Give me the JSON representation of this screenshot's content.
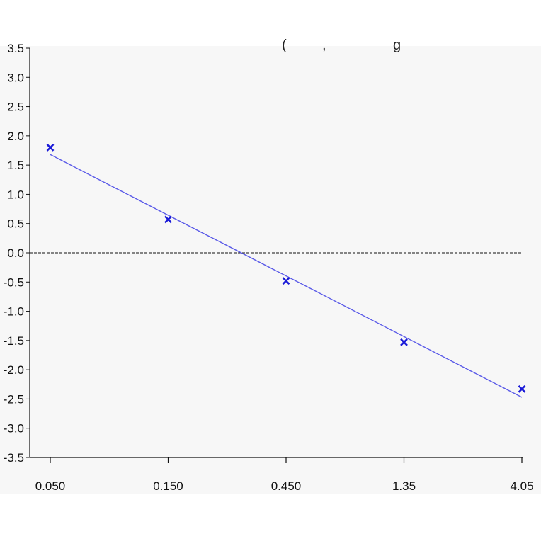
{
  "chart_data": {
    "type": "scatter",
    "title": "",
    "xlabel": "",
    "ylabel": "",
    "x_scale": "log",
    "x_tick_labels": [
      "0.050",
      "0.150",
      "0.450",
      "1.35",
      "4.05"
    ],
    "x_values": [
      0.05,
      0.15,
      0.45,
      1.35,
      4.05
    ],
    "ylim": [
      -3.5,
      3.5
    ],
    "y_ticks": [
      3.5,
      3.0,
      2.5,
      2.0,
      1.5,
      1.0,
      0.5,
      0.0,
      -0.5,
      -1.0,
      -1.5,
      -2.0,
      -2.5,
      -3.0,
      -3.5
    ],
    "y_tick_labels": [
      "3.5",
      "3.0",
      "2.5",
      "2.0",
      "1.5",
      "1.0",
      "0.5",
      "0.0",
      "-0.5",
      "-1.0",
      "-1.5",
      "-2.0",
      "-2.5",
      "-3.0",
      "-3.5"
    ],
    "series": [
      {
        "marker": "x",
        "color": "#1a1ad8",
        "points": [
          {
            "x": 0.05,
            "y": 1.8
          },
          {
            "x": 0.15,
            "y": 0.57
          },
          {
            "x": 0.45,
            "y": -0.48
          },
          {
            "x": 1.35,
            "y": -1.53
          },
          {
            "x": 4.05,
            "y": -2.33
          }
        ]
      }
    ],
    "fit_line": {
      "color": "#5a5ae8",
      "y_start": 1.68,
      "y_end": -2.47
    },
    "reference_line": {
      "y": 0.0,
      "style": "dashed",
      "color": "#111111"
    },
    "grid": false,
    "legend": "none"
  }
}
